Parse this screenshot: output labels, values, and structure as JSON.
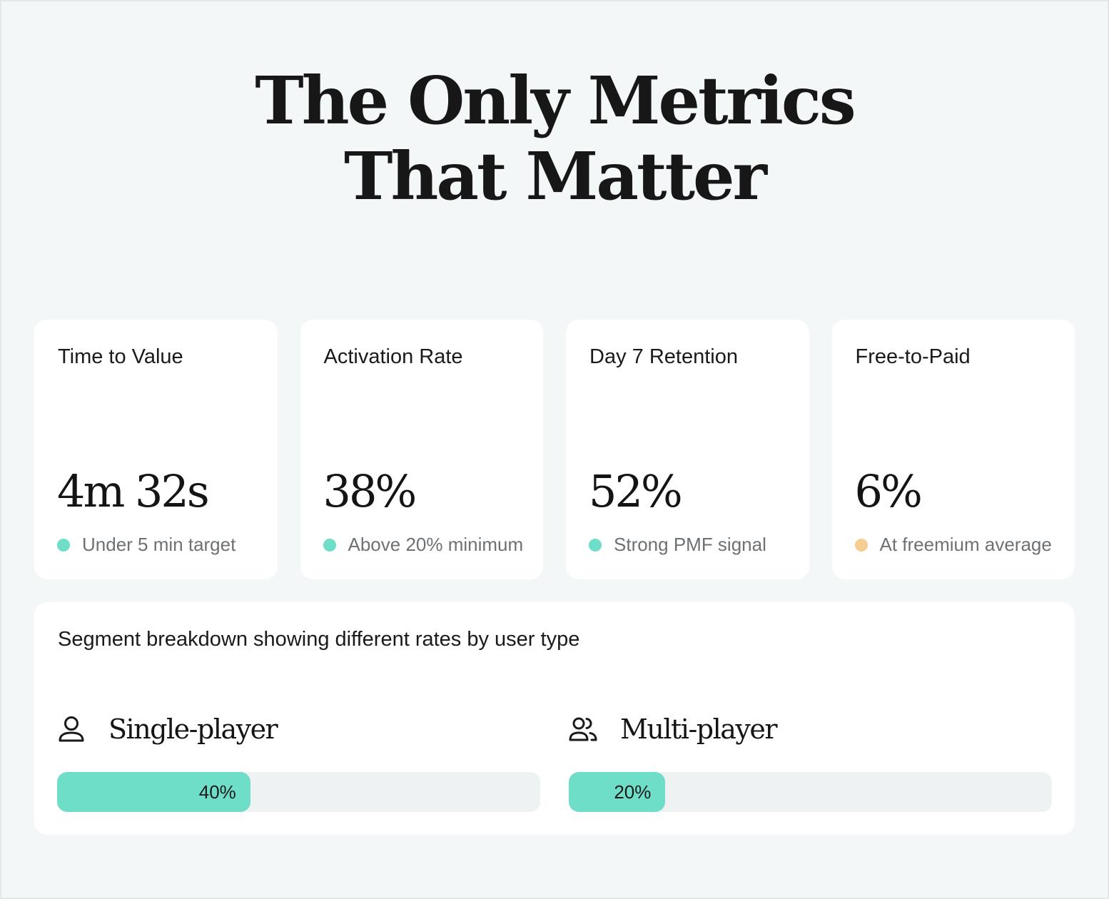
{
  "page": {
    "title_line1": "The Only Metrics",
    "title_line2": "That Matter"
  },
  "colors": {
    "good": "#6fdec8",
    "neutral": "#f6cd90",
    "bar_track": "#eef2f3",
    "background": "#f4f7f8"
  },
  "metrics": [
    {
      "label": "Time to Value",
      "value": "4m 32s",
      "status": "Under 5 min target",
      "status_color": "#6fdec8"
    },
    {
      "label": "Activation Rate",
      "value": "38%",
      "status": "Above 20% minimum",
      "status_color": "#6fdec8"
    },
    {
      "label": "Day 7 Retention",
      "value": "52%",
      "status": "Strong PMF signal",
      "status_color": "#6fdec8"
    },
    {
      "label": "Free-to-Paid",
      "value": "6%",
      "status": "At freemium average",
      "status_color": "#f6cd90"
    }
  ],
  "segments": {
    "caption": "Segment breakdown showing different rates by user type",
    "items": [
      {
        "name": "Single-player",
        "icon": "user-icon",
        "value": 40,
        "value_label": "40%"
      },
      {
        "name": "Multi-player",
        "icon": "users-icon",
        "value": 20,
        "value_label": "20%"
      }
    ]
  }
}
